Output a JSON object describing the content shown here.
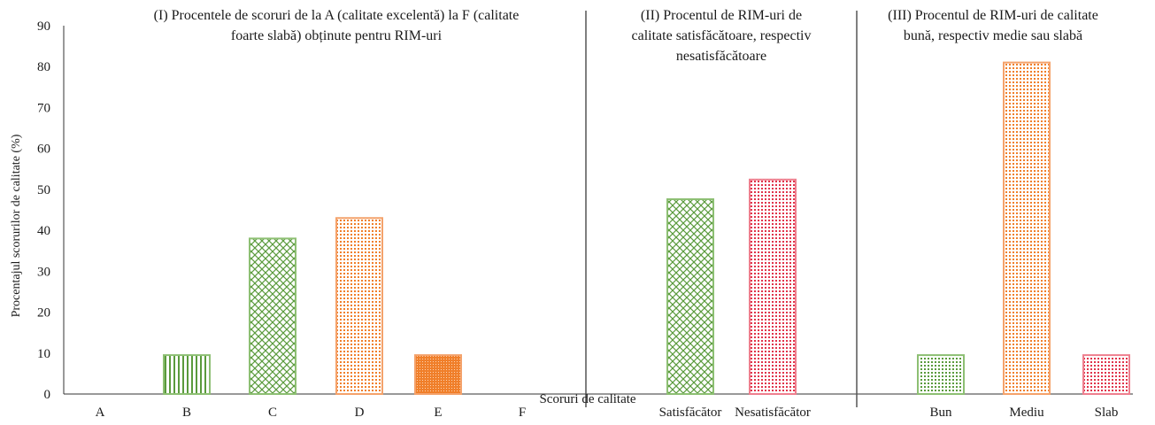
{
  "chart_data": {
    "type": "bar",
    "ylabel": "Procentajul scorurilor de calitate (%)",
    "xlabel": "Scoruri de calitate",
    "ylim": [
      0,
      90
    ],
    "yticks": [
      "0",
      "10",
      "20",
      "30",
      "40",
      "50",
      "60",
      "70",
      "80",
      "90"
    ],
    "grid": false,
    "legend": "none",
    "panels": [
      {
        "title_lines": [
          "(I) Procentele de scoruri de la A (calitate excelentă) la F (calitate",
          "foarte slabă) obținute pentru RIM-uri"
        ],
        "categories": [
          "A",
          "B",
          "C",
          "D",
          "E",
          "F"
        ],
        "values": [
          0,
          9.5,
          38,
          43,
          9.5,
          0
        ],
        "patterns": [
          "none",
          "vstripe-green",
          "cross-green",
          "dots-orange",
          "dense-orange",
          "none"
        ]
      },
      {
        "title_lines": [
          "(II) Procentul de RIM-uri de",
          "calitate satisfăcătoare, respectiv",
          "nesatisfăcătoare"
        ],
        "categories": [
          "Satisfăcător",
          "Nesatisfăcător"
        ],
        "values": [
          47.6,
          52.4
        ],
        "patterns": [
          "cross-green",
          "dots-red"
        ]
      },
      {
        "title_lines": [
          "(III) Procentul de RIM-uri de calitate",
          "bună, respectiv medie sau slabă"
        ],
        "categories": [
          "Bun",
          "Mediu",
          "Slab"
        ],
        "values": [
          9.5,
          81,
          9.5
        ],
        "patterns": [
          "dots-green",
          "dots-orange",
          "dots-red"
        ]
      }
    ],
    "colors": {
      "green": "#5a9a3c",
      "orange": "#f07f2a",
      "red": "#e0334a",
      "axis": "#333333",
      "divider": "#555555"
    }
  }
}
